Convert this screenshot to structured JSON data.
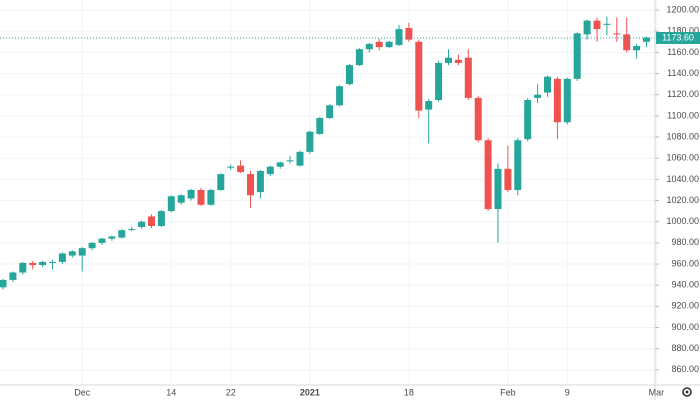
{
  "chart_data": {
    "type": "candlestick",
    "categories": [
      null,
      null,
      null,
      null,
      null,
      null,
      null,
      null,
      "Dec",
      null,
      null,
      null,
      null,
      null,
      null,
      null,
      null,
      "14",
      null,
      null,
      null,
      null,
      null,
      "22",
      null,
      null,
      null,
      null,
      null,
      null,
      null,
      "2021",
      null,
      null,
      null,
      null,
      null,
      null,
      null,
      null,
      null,
      "18",
      null,
      null,
      null,
      null,
      null,
      null,
      null,
      null,
      null,
      "Feb",
      null,
      null,
      null,
      null,
      null,
      "9",
      null,
      null,
      null,
      null,
      null,
      null,
      null,
      null,
      "Mar"
    ],
    "open": [
      938,
      945,
      952,
      961,
      959,
      962,
      962,
      968,
      968,
      975,
      980,
      984,
      985,
      993,
      995,
      1005,
      996,
      1010,
      1018,
      1022,
      1030,
      1016,
      1030,
      1051,
      1053,
      1045,
      1028,
      1045,
      1052,
      1058,
      1053,
      1066,
      1083,
      1098,
      1110,
      1130,
      1148,
      1163,
      1170,
      1165,
      1167,
      1183,
      1170,
      1106,
      1115,
      1150,
      1153,
      1155,
      1117,
      1077,
      1012,
      1050,
      1030,
      1078,
      1117,
      1122,
      1135,
      1094,
      1135,
      1177,
      1190,
      1186,
      1178,
      1177,
      1162,
      1170,
      null
    ],
    "high": [
      946,
      953,
      962,
      963,
      963,
      964,
      971,
      973,
      976,
      981,
      985,
      987,
      993,
      995,
      1001,
      1007,
      1011,
      1025,
      1026,
      1031,
      1032,
      1031,
      1046,
      1054,
      1058,
      1048,
      1049,
      1053,
      1057,
      1062,
      1067,
      1086,
      1099,
      1111,
      1129,
      1149,
      1164,
      1169,
      1173,
      1171,
      1186,
      1188,
      1172,
      1116,
      1152,
      1163,
      1158,
      1163,
      1119,
      1079,
      1055,
      1072,
      1079,
      1117,
      1130,
      1138,
      1137,
      1136,
      1179,
      1191,
      1193,
      1194,
      1193,
      1193,
      1168,
      1175,
      null
    ],
    "low": [
      936,
      943,
      950,
      955,
      957,
      955,
      960,
      966,
      953,
      973,
      978,
      982,
      984,
      991,
      993,
      994,
      995,
      1009,
      1016,
      1020,
      1015,
      1015,
      1029,
      1049,
      1046,
      1013,
      1022,
      1043,
      1050,
      1055,
      1052,
      1064,
      1082,
      1097,
      1109,
      1129,
      1147,
      1160,
      1162,
      1164,
      1166,
      1170,
      1098,
      1074,
      1113,
      1148,
      1148,
      1115,
      1075,
      1010,
      980,
      1028,
      1025,
      1076,
      1112,
      1118,
      1078,
      1092,
      1133,
      1172,
      1170,
      1176,
      1170,
      1160,
      1154,
      1165,
      null
    ],
    "close": [
      945,
      952,
      961,
      959,
      962,
      962,
      970,
      972,
      975,
      980,
      984,
      986,
      992,
      993,
      1000,
      996,
      1010,
      1024,
      1025,
      1030,
      1016,
      1030,
      1045,
      1052,
      1047,
      1025,
      1048,
      1052,
      1056,
      1058,
      1066,
      1085,
      1098,
      1110,
      1128,
      1148,
      1163,
      1168,
      1165,
      1170,
      1182,
      1172,
      1105,
      1114,
      1150,
      1155,
      1150,
      1117,
      1077,
      1012,
      1050,
      1030,
      1077,
      1115,
      1120,
      1137,
      1094,
      1135,
      1178,
      1190,
      1182,
      1187,
      1177,
      1162,
      1166,
      1174,
      null
    ],
    "up_color": "#26a69a",
    "down_color": "#ef5350",
    "ylim": [
      845.7,
      1209.5
    ],
    "yticks": [
      {
        "value": 860,
        "label": "860.00"
      },
      {
        "value": 880,
        "label": "880.00"
      },
      {
        "value": 900,
        "label": "900.00"
      },
      {
        "value": 920,
        "label": "920.00"
      },
      {
        "value": 940,
        "label": "940.00"
      },
      {
        "value": 960,
        "label": "960.00"
      },
      {
        "value": 980,
        "label": "980.00"
      },
      {
        "value": 1000,
        "label": "1000.00"
      },
      {
        "value": 1020,
        "label": "1020.00"
      },
      {
        "value": 1040,
        "label": "1040.00"
      },
      {
        "value": 1060,
        "label": "1060.00"
      },
      {
        "value": 1080,
        "label": "1080.00"
      },
      {
        "value": 1100,
        "label": "1100.00"
      },
      {
        "value": 1120,
        "label": "1120.00"
      },
      {
        "value": 1140,
        "label": "1140.00"
      },
      {
        "value": 1160,
        "label": "1160.00"
      },
      {
        "value": 1180,
        "label": "1180.00"
      },
      {
        "value": 1200,
        "label": "1200.00"
      }
    ],
    "last_price": {
      "value": 1173.6,
      "label": "1173.60"
    },
    "grid": true
  }
}
